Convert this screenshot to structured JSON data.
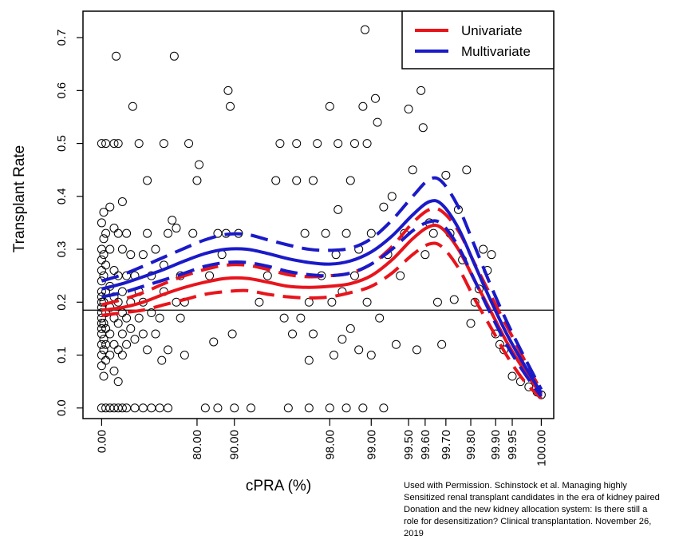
{
  "chart_data": {
    "type": "scatter",
    "title": "",
    "xlabel": "cPRA (%)",
    "ylabel": "Transplant Rate",
    "x_ticks": [
      "0.00",
      "80.00",
      "90.00",
      "98.00",
      "99.00",
      "99.50",
      "99.60",
      "99.70",
      "99.80",
      "99.90",
      "99.95",
      "100.00"
    ],
    "x_tick_positions": [
      0,
      2.3,
      3.2,
      5.5,
      6.5,
      7.4,
      7.8,
      8.3,
      8.9,
      9.5,
      9.9,
      10.6
    ],
    "y_ticks": [
      0.0,
      0.1,
      0.2,
      0.3,
      0.4,
      0.5,
      0.6,
      0.7
    ],
    "xlim": [
      -0.45,
      10.9
    ],
    "ylim": [
      -0.02,
      0.75
    ],
    "hline": 0.185,
    "legend": {
      "position": "top-right",
      "entries": [
        {
          "label": "Univariate",
          "color": "#e8141c"
        },
        {
          "label": "Multivariate",
          "color": "#1a1ac8"
        }
      ]
    },
    "series": [
      {
        "name": "Univariate",
        "color": "#e8141c",
        "x": [
          0,
          0.5,
          1,
          1.5,
          2,
          2.5,
          3,
          3.5,
          4,
          4.5,
          5,
          5.5,
          6,
          6.5,
          7,
          7.5,
          7.9,
          8.2,
          8.6,
          9,
          9.4,
          9.8,
          10.2,
          10.6
        ],
        "y": [
          0.185,
          0.19,
          0.2,
          0.215,
          0.228,
          0.238,
          0.245,
          0.245,
          0.238,
          0.23,
          0.228,
          0.23,
          0.235,
          0.25,
          0.28,
          0.32,
          0.343,
          0.34,
          0.3,
          0.24,
          0.18,
          0.12,
          0.07,
          0.025
        ],
        "lower": [
          0.175,
          0.18,
          0.185,
          0.195,
          0.205,
          0.215,
          0.22,
          0.222,
          0.215,
          0.21,
          0.208,
          0.21,
          0.218,
          0.23,
          0.255,
          0.29,
          0.31,
          0.305,
          0.265,
          0.205,
          0.15,
          0.095,
          0.05,
          0.018
        ],
        "upper": [
          0.195,
          0.205,
          0.218,
          0.235,
          0.25,
          0.262,
          0.27,
          0.27,
          0.262,
          0.252,
          0.248,
          0.25,
          0.255,
          0.272,
          0.305,
          0.35,
          0.375,
          0.372,
          0.335,
          0.272,
          0.21,
          0.15,
          0.09,
          0.032
        ]
      },
      {
        "name": "Multivariate",
        "color": "#1a1ac8",
        "x": [
          0,
          0.5,
          1,
          1.5,
          2,
          2.5,
          3,
          3.5,
          4,
          4.5,
          5,
          5.5,
          6,
          6.5,
          7,
          7.5,
          7.9,
          8.2,
          8.6,
          9,
          9.4,
          9.8,
          10.2,
          10.6
        ],
        "y": [
          0.225,
          0.235,
          0.248,
          0.262,
          0.278,
          0.292,
          0.3,
          0.3,
          0.292,
          0.282,
          0.275,
          0.272,
          0.278,
          0.295,
          0.325,
          0.365,
          0.39,
          0.385,
          0.34,
          0.27,
          0.2,
          0.135,
          0.08,
          0.028
        ],
        "lower": [
          0.21,
          0.218,
          0.23,
          0.242,
          0.255,
          0.268,
          0.275,
          0.275,
          0.268,
          0.258,
          0.252,
          0.25,
          0.255,
          0.272,
          0.3,
          0.335,
          0.352,
          0.348,
          0.305,
          0.24,
          0.175,
          0.115,
          0.065,
          0.022
        ],
        "upper": [
          0.24,
          0.252,
          0.268,
          0.285,
          0.302,
          0.318,
          0.328,
          0.328,
          0.318,
          0.308,
          0.3,
          0.298,
          0.302,
          0.32,
          0.355,
          0.4,
          0.432,
          0.428,
          0.38,
          0.305,
          0.228,
          0.158,
          0.095,
          0.035
        ]
      }
    ],
    "points": [
      [
        0,
        0
      ],
      [
        0,
        0.08
      ],
      [
        0,
        0.1
      ],
      [
        0,
        0.12
      ],
      [
        0,
        0.14
      ],
      [
        0,
        0.15
      ],
      [
        0,
        0.16
      ],
      [
        0,
        0.17
      ],
      [
        0,
        0.18
      ],
      [
        0,
        0.19
      ],
      [
        0,
        0.2
      ],
      [
        0,
        0.21
      ],
      [
        0,
        0.22
      ],
      [
        0,
        0.24
      ],
      [
        0,
        0.26
      ],
      [
        0,
        0.28
      ],
      [
        0,
        0.3
      ],
      [
        0,
        0.35
      ],
      [
        0,
        0.5
      ],
      [
        0.05,
        0.06
      ],
      [
        0.05,
        0.11
      ],
      [
        0.05,
        0.13
      ],
      [
        0.05,
        0.16
      ],
      [
        0.05,
        0.2
      ],
      [
        0.05,
        0.25
      ],
      [
        0.05,
        0.29
      ],
      [
        0.05,
        0.32
      ],
      [
        0.05,
        0.37
      ],
      [
        0.1,
        0
      ],
      [
        0.1,
        0.09
      ],
      [
        0.1,
        0.12
      ],
      [
        0.1,
        0.15
      ],
      [
        0.1,
        0.18
      ],
      [
        0.1,
        0.22
      ],
      [
        0.1,
        0.27
      ],
      [
        0.1,
        0.33
      ],
      [
        0.1,
        0.5
      ],
      [
        0.2,
        0
      ],
      [
        0.2,
        0.1
      ],
      [
        0.2,
        0.14
      ],
      [
        0.2,
        0.19
      ],
      [
        0.2,
        0.23
      ],
      [
        0.2,
        0.3
      ],
      [
        0.2,
        0.38
      ],
      [
        0.3,
        0
      ],
      [
        0.3,
        0.07
      ],
      [
        0.3,
        0.12
      ],
      [
        0.3,
        0.17
      ],
      [
        0.3,
        0.21
      ],
      [
        0.3,
        0.26
      ],
      [
        0.3,
        0.34
      ],
      [
        0.3,
        0.5
      ],
      [
        0.35,
        0.665
      ],
      [
        0.4,
        0
      ],
      [
        0.4,
        0.05
      ],
      [
        0.4,
        0.11
      ],
      [
        0.4,
        0.16
      ],
      [
        0.4,
        0.2
      ],
      [
        0.4,
        0.25
      ],
      [
        0.4,
        0.33
      ],
      [
        0.4,
        0.5
      ],
      [
        0.5,
        0
      ],
      [
        0.5,
        0.1
      ],
      [
        0.5,
        0.14
      ],
      [
        0.5,
        0.18
      ],
      [
        0.5,
        0.22
      ],
      [
        0.5,
        0.3
      ],
      [
        0.5,
        0.39
      ],
      [
        0.6,
        0
      ],
      [
        0.6,
        0.12
      ],
      [
        0.6,
        0.17
      ],
      [
        0.6,
        0.25
      ],
      [
        0.6,
        0.33
      ],
      [
        0.7,
        0.15
      ],
      [
        0.7,
        0.2
      ],
      [
        0.7,
        0.29
      ],
      [
        0.75,
        0.57
      ],
      [
        0.8,
        0
      ],
      [
        0.8,
        0.13
      ],
      [
        0.8,
        0.25
      ],
      [
        0.9,
        0.17
      ],
      [
        0.9,
        0.22
      ],
      [
        0.9,
        0.5
      ],
      [
        1.0,
        0
      ],
      [
        1.0,
        0.14
      ],
      [
        1.0,
        0.2
      ],
      [
        1.0,
        0.29
      ],
      [
        1.1,
        0.11
      ],
      [
        1.1,
        0.33
      ],
      [
        1.1,
        0.43
      ],
      [
        1.2,
        0
      ],
      [
        1.2,
        0.18
      ],
      [
        1.2,
        0.25
      ],
      [
        1.3,
        0.3
      ],
      [
        1.3,
        0.14
      ],
      [
        1.4,
        0
      ],
      [
        1.4,
        0.17
      ],
      [
        1.45,
        0.09
      ],
      [
        1.5,
        0.22
      ],
      [
        1.5,
        0.27
      ],
      [
        1.5,
        0.5
      ],
      [
        1.6,
        0
      ],
      [
        1.6,
        0.11
      ],
      [
        1.6,
        0.33
      ],
      [
        1.7,
        0.355
      ],
      [
        1.75,
        0.665
      ],
      [
        1.8,
        0.34
      ],
      [
        1.8,
        0.2
      ],
      [
        1.9,
        0.17
      ],
      [
        1.9,
        0.25
      ],
      [
        2.0,
        0.1
      ],
      [
        2.0,
        0.2
      ],
      [
        2.1,
        0.5
      ],
      [
        2.2,
        0.33
      ],
      [
        2.3,
        0.43
      ],
      [
        2.35,
        0.46
      ],
      [
        2.5,
        0
      ],
      [
        2.6,
        0.25
      ],
      [
        2.7,
        0.125
      ],
      [
        2.8,
        0
      ],
      [
        2.8,
        0.33
      ],
      [
        2.9,
        0.29
      ],
      [
        3.0,
        0.33
      ],
      [
        3.05,
        0.6
      ],
      [
        3.1,
        0.57
      ],
      [
        3.15,
        0.14
      ],
      [
        3.2,
        0
      ],
      [
        3.3,
        0.33
      ],
      [
        3.6,
        0
      ],
      [
        3.8,
        0.2
      ],
      [
        4.0,
        0.25
      ],
      [
        4.2,
        0.43
      ],
      [
        4.3,
        0.5
      ],
      [
        4.4,
        0.17
      ],
      [
        4.5,
        0
      ],
      [
        4.6,
        0.14
      ],
      [
        4.7,
        0.43
      ],
      [
        4.7,
        0.5
      ],
      [
        4.8,
        0.17
      ],
      [
        4.9,
        0.33
      ],
      [
        5.0,
        0
      ],
      [
        5.0,
        0.09
      ],
      [
        5.0,
        0.2
      ],
      [
        5.1,
        0.14
      ],
      [
        5.1,
        0.43
      ],
      [
        5.2,
        0.5
      ],
      [
        5.3,
        0.25
      ],
      [
        5.4,
        0.33
      ],
      [
        5.5,
        0
      ],
      [
        5.5,
        0.57
      ],
      [
        5.55,
        0.2
      ],
      [
        5.6,
        0.1
      ],
      [
        5.65,
        0.29
      ],
      [
        5.7,
        0.375
      ],
      [
        5.7,
        0.5
      ],
      [
        5.8,
        0.13
      ],
      [
        5.8,
        0.22
      ],
      [
        5.9,
        0
      ],
      [
        5.9,
        0.33
      ],
      [
        6.0,
        0.15
      ],
      [
        6.0,
        0.43
      ],
      [
        6.1,
        0.25
      ],
      [
        6.1,
        0.5
      ],
      [
        6.2,
        0.11
      ],
      [
        6.2,
        0.3
      ],
      [
        6.3,
        0
      ],
      [
        6.3,
        0.57
      ],
      [
        6.35,
        0.715
      ],
      [
        6.4,
        0.2
      ],
      [
        6.4,
        0.5
      ],
      [
        6.5,
        0.1
      ],
      [
        6.5,
        0.33
      ],
      [
        6.6,
        0.585
      ],
      [
        6.65,
        0.54
      ],
      [
        6.7,
        0.17
      ],
      [
        6.8,
        0
      ],
      [
        6.8,
        0.38
      ],
      [
        6.9,
        0.29
      ],
      [
        7.0,
        0.4
      ],
      [
        7.1,
        0.12
      ],
      [
        7.2,
        0.25
      ],
      [
        7.3,
        0.33
      ],
      [
        7.4,
        0.565
      ],
      [
        7.5,
        0.45
      ],
      [
        7.6,
        0.11
      ],
      [
        7.7,
        0.6
      ],
      [
        7.75,
        0.53
      ],
      [
        7.8,
        0.29
      ],
      [
        7.9,
        0.35
      ],
      [
        8.0,
        0.33
      ],
      [
        8.1,
        0.2
      ],
      [
        8.2,
        0.12
      ],
      [
        8.3,
        0.44
      ],
      [
        8.4,
        0.33
      ],
      [
        8.5,
        0.205
      ],
      [
        8.6,
        0.375
      ],
      [
        8.7,
        0.28
      ],
      [
        8.8,
        0.45
      ],
      [
        8.9,
        0.16
      ],
      [
        9.0,
        0.2
      ],
      [
        9.1,
        0.225
      ],
      [
        9.2,
        0.3
      ],
      [
        9.3,
        0.26
      ],
      [
        9.4,
        0.29
      ],
      [
        9.5,
        0.14
      ],
      [
        9.6,
        0.12
      ],
      [
        9.7,
        0.11
      ],
      [
        9.9,
        0.06
      ],
      [
        10.1,
        0.05
      ],
      [
        10.3,
        0.04
      ],
      [
        10.5,
        0.03
      ],
      [
        10.6,
        0.025
      ]
    ]
  },
  "credit": {
    "text": "Used with Permission.  Schinstock et al.  Managing highly\nSensitized renal transplant candidates in the era of kidney paired\nDonation and the new kidney allocation system:  Is there still a\nrole for desensitization?  Clinical transplantation.  November 26,\n2019"
  }
}
